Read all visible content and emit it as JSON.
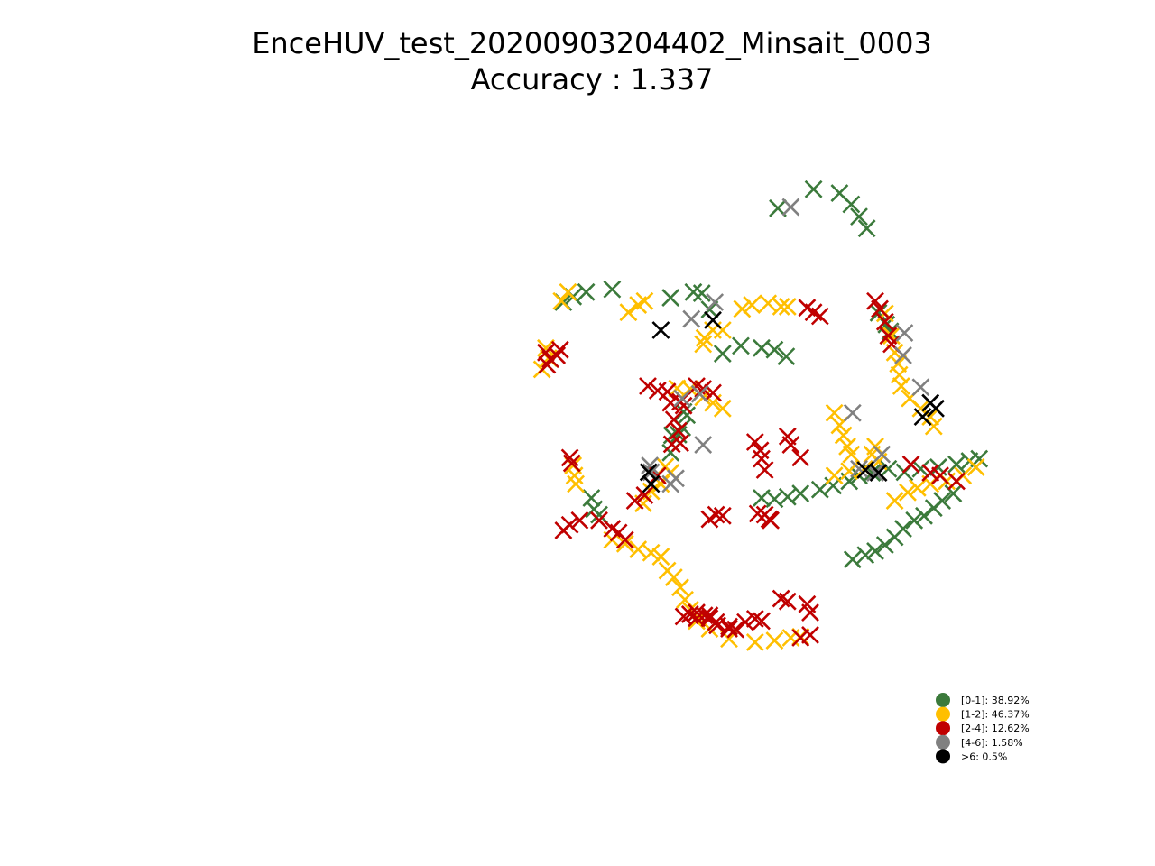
{
  "chart_data": {
    "type": "scatter",
    "title": "EnceHUV_test_20200903204402_Minsait_0003",
    "subtitle": "Accuracy : 1.337",
    "xlabel": "",
    "ylabel": "",
    "axes_visible": false,
    "grid": false,
    "marker": "x",
    "legend_position": "lower-right",
    "xlim": [
      0,
      1000
    ],
    "ylim": [
      0,
      1000
    ],
    "series": [
      {
        "name": "[0-1]: 38.92%",
        "color": "#3b7a3b",
        "points": [
          [
            725,
            918
          ],
          [
            780,
            952
          ],
          [
            820,
            945
          ],
          [
            838,
            925
          ],
          [
            850,
            903
          ],
          [
            862,
            882
          ],
          [
            470,
            773
          ],
          [
            430,
            768
          ],
          [
            410,
            760
          ],
          [
            395,
            750
          ],
          [
            560,
            758
          ],
          [
            595,
            768
          ],
          [
            608,
            766
          ],
          [
            620,
            737
          ],
          [
            640,
            658
          ],
          [
            668,
            672
          ],
          [
            700,
            668
          ],
          [
            720,
            665
          ],
          [
            738,
            653
          ],
          [
            880,
            731
          ],
          [
            892,
            710
          ],
          [
            898,
            698
          ],
          [
            580,
            554
          ],
          [
            585,
            548
          ],
          [
            578,
            526
          ],
          [
            562,
            512
          ],
          [
            572,
            513
          ],
          [
            560,
            481
          ],
          [
            438,
            400
          ],
          [
            450,
            370
          ],
          [
            442,
            380
          ],
          [
            700,
            400
          ],
          [
            720,
            398
          ],
          [
            740,
            402
          ],
          [
            760,
            408
          ],
          [
            790,
            415
          ],
          [
            810,
            422
          ],
          [
            835,
            430
          ],
          [
            850,
            440
          ],
          [
            870,
            445
          ],
          [
            895,
            452
          ],
          [
            920,
            446
          ],
          [
            945,
            452
          ],
          [
            972,
            455
          ],
          [
            1000,
            460
          ],
          [
            1020,
            466
          ],
          [
            1035,
            470
          ],
          [
            840,
            290
          ],
          [
            860,
            298
          ],
          [
            875,
            305
          ],
          [
            890,
            316
          ],
          [
            905,
            330
          ],
          [
            918,
            345
          ],
          [
            935,
            360
          ],
          [
            950,
            368
          ],
          [
            965,
            382
          ],
          [
            978,
            395
          ],
          [
            995,
            408
          ]
        ]
      },
      {
        "name": "[1-2]: 46.37%",
        "color": "#ffbf00",
        "points": [
          [
            520,
            752
          ],
          [
            510,
            745
          ],
          [
            495,
            732
          ],
          [
            402,
            768
          ],
          [
            392,
            752
          ],
          [
            368,
            668
          ],
          [
            372,
            650
          ],
          [
            362,
            630
          ],
          [
            670,
            738
          ],
          [
            685,
            745
          ],
          [
            710,
            748
          ],
          [
            730,
            742
          ],
          [
            740,
            742
          ],
          [
            625,
            700
          ],
          [
            640,
            700
          ],
          [
            612,
            686
          ],
          [
            610,
            675
          ],
          [
            890,
            730
          ],
          [
            900,
            690
          ],
          [
            905,
            660
          ],
          [
            910,
            640
          ],
          [
            912,
            620
          ],
          [
            915,
            600
          ],
          [
            812,
            552
          ],
          [
            820,
            530
          ],
          [
            826,
            512
          ],
          [
            832,
            492
          ],
          [
            838,
            478
          ],
          [
            928,
            578
          ],
          [
            945,
            560
          ],
          [
            960,
            545
          ],
          [
            965,
            528
          ],
          [
            875,
            492
          ],
          [
            870,
            478
          ],
          [
            880,
            465
          ],
          [
            858,
            452
          ],
          [
            835,
            448
          ],
          [
            812,
            440
          ],
          [
            570,
            596
          ],
          [
            590,
            595
          ],
          [
            610,
            580
          ],
          [
            625,
            570
          ],
          [
            640,
            560
          ],
          [
            410,
            458
          ],
          [
            412,
            440
          ],
          [
            414,
            425
          ],
          [
            552,
            456
          ],
          [
            560,
            445
          ],
          [
            545,
            425
          ],
          [
            530,
            412
          ],
          [
            518,
            390
          ],
          [
            470,
            325
          ],
          [
            490,
            318
          ],
          [
            510,
            308
          ],
          [
            530,
            302
          ],
          [
            545,
            295
          ],
          [
            555,
            270
          ],
          [
            565,
            258
          ],
          [
            575,
            240
          ],
          [
            582,
            218
          ],
          [
            590,
            200
          ],
          [
            600,
            180
          ],
          [
            620,
            166
          ],
          [
            650,
            148
          ],
          [
            690,
            142
          ],
          [
            720,
            145
          ],
          [
            745,
            150
          ],
          [
            760,
            152
          ],
          [
            905,
            395
          ],
          [
            925,
            410
          ],
          [
            940,
            418
          ],
          [
            960,
            425
          ],
          [
            985,
            430
          ],
          [
            1010,
            440
          ],
          [
            1030,
            455
          ]
        ]
      },
      {
        "name": "[2-4]: 12.62%",
        "color": "#c00000",
        "points": [
          [
            370,
            638
          ],
          [
            375,
            648
          ],
          [
            368,
            660
          ],
          [
            385,
            655
          ],
          [
            390,
            665
          ],
          [
            780,
            732
          ],
          [
            770,
            740
          ],
          [
            790,
            725
          ],
          [
            875,
            752
          ],
          [
            882,
            738
          ],
          [
            890,
            715
          ],
          [
            895,
            690
          ],
          [
            900,
            675
          ],
          [
            740,
            510
          ],
          [
            745,
            495
          ],
          [
            760,
            472
          ],
          [
            690,
            500
          ],
          [
            698,
            485
          ],
          [
            700,
            470
          ],
          [
            705,
            450
          ],
          [
            694,
            372
          ],
          [
            705,
            370
          ],
          [
            712,
            362
          ],
          [
            714,
            360
          ],
          [
            600,
            600
          ],
          [
            610,
            595
          ],
          [
            625,
            588
          ],
          [
            575,
            572
          ],
          [
            580,
            565
          ],
          [
            620,
            362
          ],
          [
            630,
            370
          ],
          [
            640,
            368
          ],
          [
            405,
            472
          ],
          [
            408,
            462
          ],
          [
            525,
            600
          ],
          [
            540,
            592
          ],
          [
            555,
            590
          ],
          [
            560,
            570
          ],
          [
            565,
            540
          ],
          [
            572,
            520
          ],
          [
            575,
            498
          ],
          [
            562,
            496
          ],
          [
            540,
            440
          ],
          [
            520,
            405
          ],
          [
            505,
            395
          ],
          [
            490,
            325
          ],
          [
            480,
            338
          ],
          [
            470,
            345
          ],
          [
            450,
            360
          ],
          [
            420,
            360
          ],
          [
            405,
            352
          ],
          [
            395,
            342
          ],
          [
            600,
            185
          ],
          [
            620,
            190
          ],
          [
            630,
            178
          ],
          [
            650,
            170
          ],
          [
            675,
            178
          ],
          [
            690,
            184
          ],
          [
            730,
            220
          ],
          [
            740,
            215
          ],
          [
            770,
            210
          ],
          [
            775,
            195
          ],
          [
            580,
            188
          ],
          [
            590,
            192
          ],
          [
            600,
            195
          ],
          [
            612,
            190
          ],
          [
            620,
            185
          ],
          [
            632,
            172
          ],
          [
            650,
            166
          ],
          [
            660,
            165
          ],
          [
            700,
            180
          ],
          [
            760,
            150
          ],
          [
            775,
            155
          ],
          [
            930,
            460
          ],
          [
            960,
            445
          ],
          [
            975,
            440
          ],
          [
            1000,
            430
          ]
        ]
      },
      {
        "name": "[4-6]: 1.58%",
        "color": "#808080",
        "points": [
          [
            745,
            920
          ],
          [
            592,
            720
          ],
          [
            628,
            750
          ],
          [
            920,
            695
          ],
          [
            918,
            655
          ],
          [
            960,
            570
          ],
          [
            945,
            598
          ],
          [
            840,
            552
          ],
          [
            885,
            478
          ],
          [
            875,
            445
          ],
          [
            850,
            452
          ],
          [
            610,
            495
          ],
          [
            578,
            578
          ],
          [
            528,
            458
          ],
          [
            530,
            446
          ],
          [
            560,
            425
          ],
          [
            605,
            586
          ],
          [
            568,
            435
          ]
        ]
      },
      {
        "name": ">6: 0.5%",
        "color": "#000000",
        "points": [
          [
            625,
            718
          ],
          [
            545,
            700
          ],
          [
            968,
            560
          ],
          [
            960,
            570
          ],
          [
            860,
            450
          ],
          [
            880,
            445
          ],
          [
            526,
            446
          ],
          [
            530,
            425
          ],
          [
            948,
            545
          ]
        ]
      }
    ]
  }
}
